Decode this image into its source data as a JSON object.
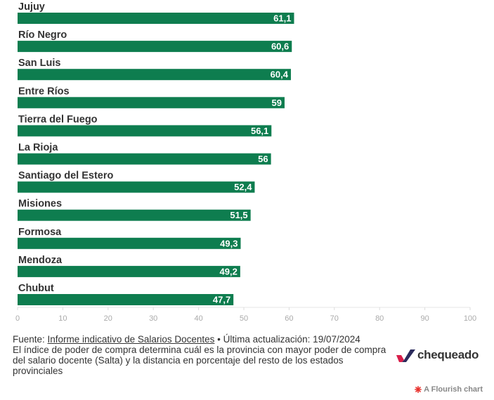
{
  "chart_data": {
    "type": "bar",
    "orientation": "horizontal",
    "categories": [
      "Jujuy",
      "Río Negro",
      "San Luis",
      "Entre Ríos",
      "Tierra del Fuego",
      "La Rioja",
      "Santiago del Estero",
      "Misiones",
      "Formosa",
      "Mendoza",
      "Chubut"
    ],
    "values": [
      61.1,
      60.6,
      60.4,
      59,
      56.1,
      56,
      52.4,
      51.5,
      49.3,
      49.2,
      47.7
    ],
    "value_labels": [
      "61,1",
      "60,6",
      "60,4",
      "59",
      "56,1",
      "56",
      "52,4",
      "51,5",
      "49,3",
      "49,2",
      "47,7"
    ],
    "xlim": [
      0,
      100
    ],
    "xticks": [
      0,
      10,
      20,
      30,
      40,
      50,
      60,
      70,
      80,
      90,
      100
    ],
    "bar_color": "#0e7d4f",
    "grid": false
  },
  "footer": {
    "source_prefix": "Fuente: ",
    "source_link": "Informe indicativo de Salarios Docentes",
    "update_text": " • Última actualización: 19/07/2024",
    "note": "El índice de poder de compra determina cuál es la provincia con mayor poder de compra del salario docente (Salta) y la distancia en porcentaje del resto de los estados provinciales"
  },
  "logo": {
    "text": "chequeado",
    "accent_color": "#d81e4a",
    "dark_color": "#2b2b5c"
  },
  "flourish": {
    "label": "A Flourish chart",
    "icon_color": "#e8322d"
  }
}
